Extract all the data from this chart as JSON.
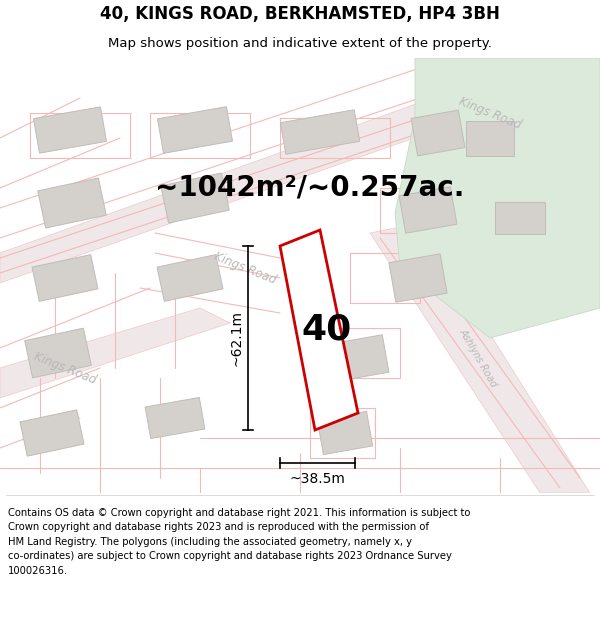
{
  "title": "40, KINGS ROAD, BERKHAMSTED, HP4 3BH",
  "subtitle": "Map shows position and indicative extent of the property.",
  "area_label": "~1042m²/~0.257ac.",
  "number_label": "40",
  "dim_height": "~62.1m",
  "dim_width": "~38.5m",
  "footer": "Contains OS data © Crown copyright and database right 2021. This information is subject to Crown copyright and database rights 2023 and is reproduced with the permission of HM Land Registry. The polygons (including the associated geometry, namely x, y co-ordinates) are subject to Crown copyright and database rights 2023 Ordnance Survey 100026316.",
  "bg_color": "#ffffff",
  "map_bg": "#f7f4f2",
  "road_color": "#f5b8b8",
  "road_color2": "#e8a0a0",
  "building_color": "#d4d0cc",
  "building_edge": "#c0bcb8",
  "highlight_color": "#cc0000",
  "green_area": "#dceadc",
  "green_edge": "#c8d8c8",
  "title_fontsize": 12,
  "subtitle_fontsize": 9.5,
  "area_fontsize": 20,
  "number_fontsize": 26,
  "footer_fontsize": 7.2,
  "dim_fontsize": 10,
  "road_label_color": "#b8b8b8",
  "road_label_size": 8.5
}
